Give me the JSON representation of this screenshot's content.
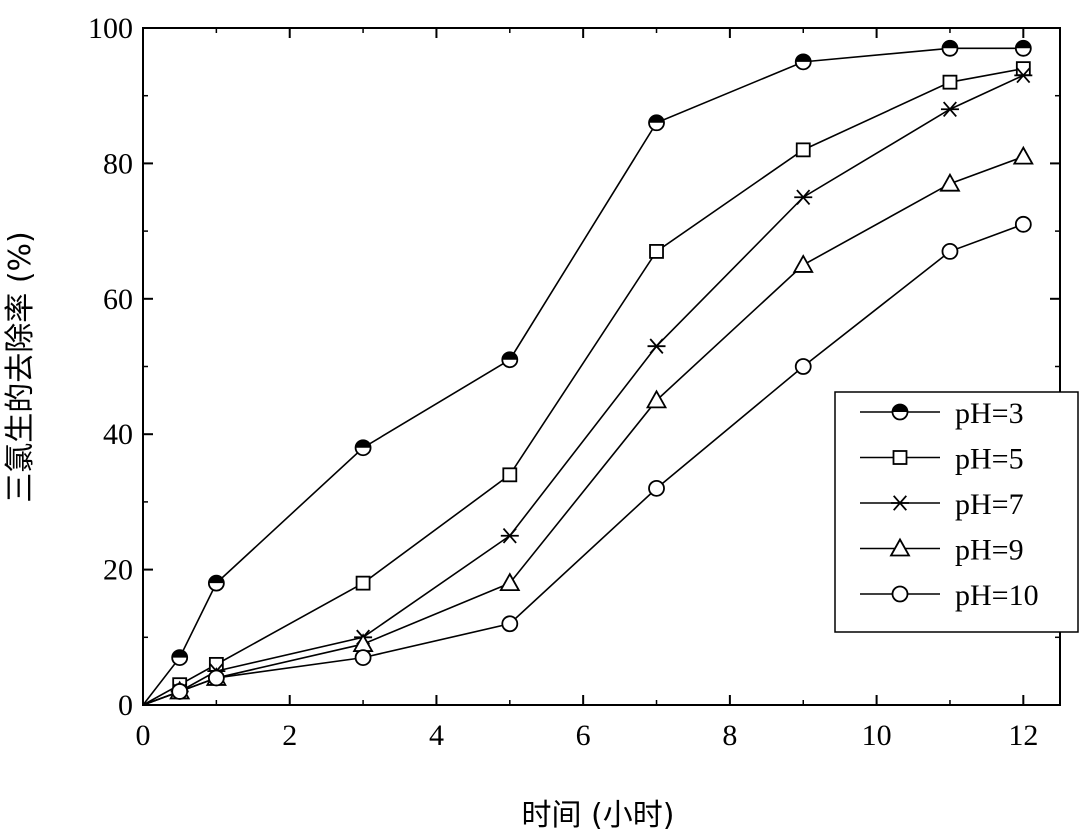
{
  "chart_data": {
    "type": "line",
    "xlabel": "时间 (小时)",
    "ylabel": "三氯生的去除率 (%)",
    "xlim": [
      0,
      12.5
    ],
    "ylim": [
      0,
      100
    ],
    "xticks": [
      "0",
      "2",
      "4",
      "6",
      "8",
      "10",
      "12"
    ],
    "yticks": [
      "0",
      "20",
      "40",
      "60",
      "80",
      "100"
    ],
    "grid": false,
    "legend_position": "bottom-right",
    "line_color": "#000000",
    "series": [
      {
        "name": "pH=3",
        "marker": "half-filled-circle",
        "x": [
          0,
          0.5,
          1,
          3,
          5,
          7,
          9,
          11,
          12
        ],
        "y": [
          0,
          7,
          18,
          38,
          51,
          86,
          95,
          97,
          97
        ]
      },
      {
        "name": "pH=5",
        "marker": "open-square",
        "x": [
          0,
          0.5,
          1,
          3,
          5,
          7,
          9,
          11,
          12
        ],
        "y": [
          0,
          3,
          6,
          18,
          34,
          67,
          82,
          92,
          94
        ]
      },
      {
        "name": "pH=7",
        "marker": "asterisk",
        "x": [
          0,
          0.5,
          1,
          3,
          5,
          7,
          9,
          11,
          12
        ],
        "y": [
          0,
          2,
          5,
          10,
          25,
          53,
          75,
          88,
          93
        ]
      },
      {
        "name": "pH=9",
        "marker": "open-triangle",
        "x": [
          0,
          0.5,
          1,
          3,
          5,
          7,
          9,
          11,
          12
        ],
        "y": [
          0,
          2,
          4,
          9,
          18,
          45,
          65,
          77,
          81
        ]
      },
      {
        "name": "pH=10",
        "marker": "open-circle",
        "x": [
          0,
          0.5,
          1,
          3,
          5,
          7,
          9,
          11,
          12
        ],
        "y": [
          0,
          2,
          4,
          7,
          12,
          32,
          50,
          67,
          71
        ]
      }
    ]
  }
}
